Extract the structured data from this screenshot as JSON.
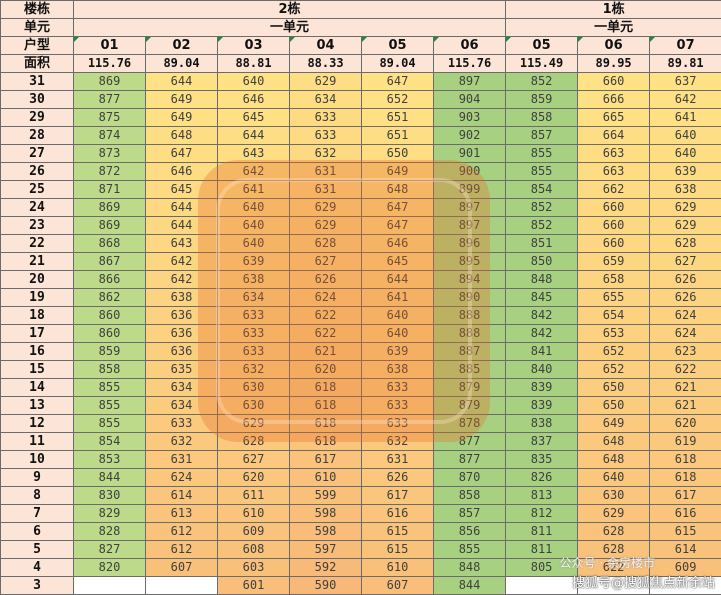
{
  "labels": {
    "building": "楼栋",
    "unit": "单元",
    "house_type": "户型",
    "area": "面积"
  },
  "buildings": [
    {
      "name": "2栋",
      "unit": "一单元"
    },
    {
      "name": "1栋",
      "unit": "一单元"
    }
  ],
  "house_types": [
    "01",
    "02",
    "03",
    "04",
    "05",
    "06",
    "05",
    "06",
    "07"
  ],
  "areas": [
    "115.76",
    "89.04",
    "88.81",
    "88.33",
    "89.04",
    "115.76",
    "115.49",
    "89.95",
    "89.81"
  ],
  "rows": [
    {
      "floor": "31",
      "prices": [
        "869",
        "644",
        "640",
        "629",
        "647",
        "897",
        "852",
        "660",
        "637"
      ]
    },
    {
      "floor": "30",
      "prices": [
        "877",
        "649",
        "646",
        "634",
        "652",
        "904",
        "859",
        "666",
        "642"
      ]
    },
    {
      "floor": "29",
      "prices": [
        "875",
        "649",
        "645",
        "633",
        "651",
        "903",
        "858",
        "665",
        "641"
      ]
    },
    {
      "floor": "28",
      "prices": [
        "874",
        "648",
        "644",
        "633",
        "651",
        "902",
        "857",
        "664",
        "640"
      ]
    },
    {
      "floor": "27",
      "prices": [
        "873",
        "647",
        "643",
        "632",
        "650",
        "901",
        "855",
        "663",
        "640"
      ]
    },
    {
      "floor": "26",
      "prices": [
        "872",
        "646",
        "642",
        "631",
        "649",
        "900",
        "855",
        "663",
        "639"
      ]
    },
    {
      "floor": "25",
      "prices": [
        "871",
        "645",
        "641",
        "631",
        "648",
        "899",
        "854",
        "662",
        "638"
      ]
    },
    {
      "floor": "24",
      "prices": [
        "869",
        "644",
        "640",
        "629",
        "647",
        "897",
        "852",
        "660",
        "629"
      ]
    },
    {
      "floor": "23",
      "prices": [
        "869",
        "644",
        "640",
        "629",
        "647",
        "897",
        "852",
        "660",
        "629"
      ]
    },
    {
      "floor": "22",
      "prices": [
        "868",
        "643",
        "640",
        "628",
        "646",
        "896",
        "851",
        "660",
        "628"
      ]
    },
    {
      "floor": "21",
      "prices": [
        "867",
        "642",
        "639",
        "627",
        "645",
        "895",
        "850",
        "659",
        "627"
      ]
    },
    {
      "floor": "20",
      "prices": [
        "866",
        "642",
        "638",
        "626",
        "644",
        "894",
        "848",
        "658",
        "626"
      ]
    },
    {
      "floor": "19",
      "prices": [
        "862",
        "638",
        "634",
        "624",
        "641",
        "890",
        "845",
        "655",
        "626"
      ]
    },
    {
      "floor": "18",
      "prices": [
        "860",
        "636",
        "633",
        "622",
        "640",
        "888",
        "842",
        "654",
        "624"
      ]
    },
    {
      "floor": "17",
      "prices": [
        "860",
        "636",
        "633",
        "622",
        "640",
        "888",
        "842",
        "653",
        "624"
      ]
    },
    {
      "floor": "16",
      "prices": [
        "859",
        "636",
        "633",
        "621",
        "639",
        "887",
        "841",
        "652",
        "623"
      ]
    },
    {
      "floor": "15",
      "prices": [
        "858",
        "635",
        "632",
        "620",
        "638",
        "885",
        "840",
        "652",
        "622"
      ]
    },
    {
      "floor": "14",
      "prices": [
        "855",
        "634",
        "630",
        "618",
        "633",
        "879",
        "839",
        "650",
        "621"
      ]
    },
    {
      "floor": "13",
      "prices": [
        "855",
        "634",
        "630",
        "618",
        "633",
        "879",
        "839",
        "650",
        "621"
      ]
    },
    {
      "floor": "12",
      "prices": [
        "855",
        "633",
        "629",
        "618",
        "633",
        "878",
        "838",
        "649",
        "620"
      ]
    },
    {
      "floor": "11",
      "prices": [
        "854",
        "632",
        "628",
        "618",
        "632",
        "877",
        "837",
        "648",
        "619"
      ]
    },
    {
      "floor": "10",
      "prices": [
        "853",
        "631",
        "627",
        "617",
        "631",
        "877",
        "835",
        "648",
        "618"
      ]
    },
    {
      "floor": "9",
      "prices": [
        "844",
        "624",
        "620",
        "610",
        "626",
        "870",
        "826",
        "640",
        "618"
      ]
    },
    {
      "floor": "8",
      "prices": [
        "830",
        "614",
        "611",
        "599",
        "617",
        "858",
        "813",
        "630",
        "617"
      ]
    },
    {
      "floor": "7",
      "prices": [
        "829",
        "613",
        "610",
        "598",
        "616",
        "857",
        "812",
        "629",
        "616"
      ]
    },
    {
      "floor": "6",
      "prices": [
        "828",
        "612",
        "609",
        "598",
        "615",
        "856",
        "811",
        "628",
        "615"
      ]
    },
    {
      "floor": "5",
      "prices": [
        "827",
        "612",
        "608",
        "597",
        "615",
        "855",
        "811",
        "628",
        "614"
      ]
    },
    {
      "floor": "4",
      "prices": [
        "820",
        "607",
        "603",
        "592",
        "610",
        "848",
        "805",
        "622",
        "609"
      ]
    },
    {
      "floor": "3",
      "prices": [
        "",
        "",
        "601",
        "590",
        "607",
        "844",
        "",
        "",
        ""
      ]
    }
  ],
  "colors": {
    "header_bg": "#fce4d6",
    "green_low": "#c4dd8c",
    "green_high": "#8fc876",
    "yellow": "#ffe285",
    "orange": "#f8b978",
    "grid": "#6b6b6b"
  },
  "credit": "搜狐号@搜狐焦点新余站",
  "credit_faint": "公众号 · 余房楼市"
}
